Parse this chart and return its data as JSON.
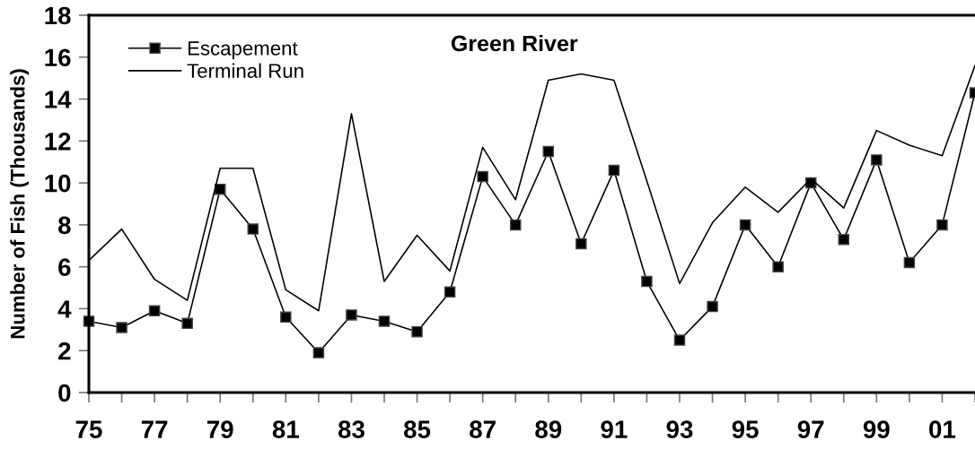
{
  "chart_data": {
    "type": "line",
    "title": "Green River",
    "ylabel": "Number of Fish (Thousands)",
    "categories": [
      "75",
      null,
      "77",
      null,
      "79",
      null,
      "81",
      null,
      "83",
      null,
      "85",
      null,
      "87",
      null,
      "89",
      null,
      "91",
      null,
      "93",
      null,
      "95",
      null,
      "97",
      null,
      "99",
      null,
      "01",
      null
    ],
    "series": [
      {
        "name": "Escapement",
        "color": "#000000",
        "marker": "square",
        "values": [
          3.4,
          3.1,
          3.9,
          3.3,
          9.7,
          7.8,
          3.6,
          1.9,
          3.7,
          3.4,
          2.9,
          4.8,
          10.3,
          8.0,
          11.5,
          7.1,
          10.6,
          5.3,
          2.5,
          4.1,
          8.0,
          6.0,
          10.0,
          7.3,
          11.1,
          6.2,
          8.0,
          14.3
        ]
      },
      {
        "name": "Terminal Run",
        "color": "#000000",
        "values": [
          6.3,
          7.8,
          5.4,
          4.4,
          10.7,
          10.7,
          4.9,
          3.9,
          13.3,
          5.3,
          7.5,
          5.8,
          11.7,
          9.2,
          14.9,
          15.2,
          14.9,
          10.1,
          5.2,
          8.1,
          9.8,
          8.6,
          10.2,
          8.8,
          12.5,
          11.8,
          11.3,
          15.6
        ]
      }
    ],
    "ylim": [
      0,
      18
    ],
    "yticks": [
      0,
      2,
      4,
      6,
      8,
      10,
      12,
      14,
      16,
      18
    ],
    "legend": "top left",
    "line_style": "solid"
  }
}
